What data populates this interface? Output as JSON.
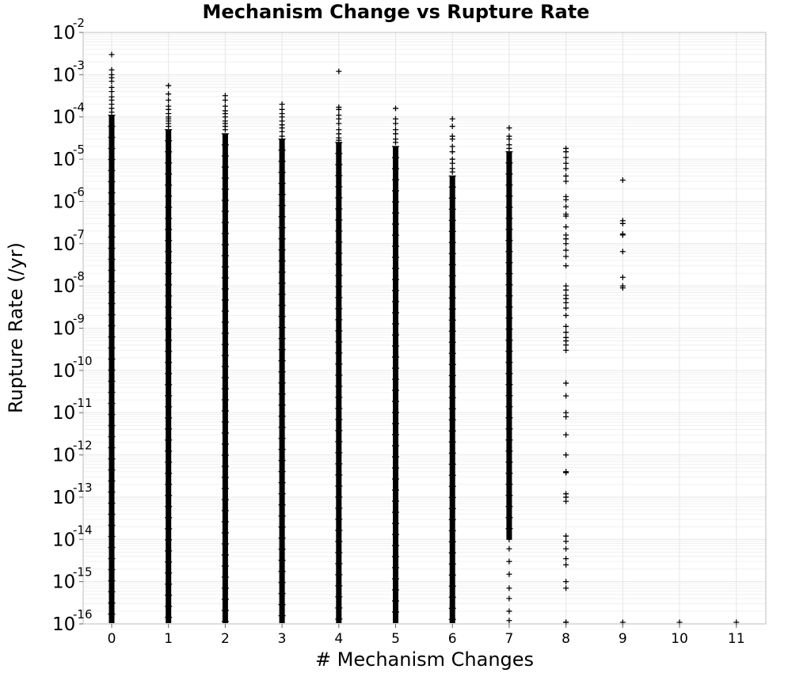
{
  "chart_data": {
    "type": "scatter",
    "title": "Mechanism Change vs Rupture Rate",
    "xlabel": "# Mechanism Changes",
    "ylabel": "Rupture Rate (/yr)",
    "x_ticks": [
      "0",
      "1",
      "2",
      "3",
      "4",
      "5",
      "6",
      "7",
      "8",
      "9",
      "10",
      "11"
    ],
    "y_scale": "log",
    "y_ticks": [
      {
        "base": "10",
        "exp": "-16"
      },
      {
        "base": "10",
        "exp": "-15"
      },
      {
        "base": "10",
        "exp": "-14"
      },
      {
        "base": "10",
        "exp": "-13"
      },
      {
        "base": "10",
        "exp": "-12"
      },
      {
        "base": "10",
        "exp": "-11"
      },
      {
        "base": "10",
        "exp": "-10"
      },
      {
        "base": "10",
        "exp": "-9"
      },
      {
        "base": "10",
        "exp": "-8"
      },
      {
        "base": "10",
        "exp": "-7"
      },
      {
        "base": "10",
        "exp": "-6"
      },
      {
        "base": "10",
        "exp": "-5"
      },
      {
        "base": "10",
        "exp": "-4"
      },
      {
        "base": "10",
        "exp": "-3"
      },
      {
        "base": "10",
        "exp": "-2"
      }
    ],
    "xlim": [
      -0.5,
      11.5
    ],
    "ylim": [
      1e-16,
      0.01
    ],
    "grid": true,
    "marker": "+",
    "marker_color": "#000000",
    "columns": [
      {
        "x": 0,
        "dense_min": 1e-16,
        "dense_max": 0.00011,
        "points": [
          0.003,
          0.0013,
          0.001,
          0.00085,
          0.0007,
          0.0005,
          0.0004,
          0.0003,
          0.00025,
          0.0002,
          0.00016,
          0.00013
        ]
      },
      {
        "x": 1,
        "dense_min": 1e-16,
        "dense_max": 5e-05,
        "points": [
          0.00055,
          0.00035,
          0.00025,
          0.00018,
          0.00015,
          0.00012,
          0.0001,
          9e-05,
          8e-05,
          7e-05,
          6e-05
        ]
      },
      {
        "x": 2,
        "dense_min": 1e-16,
        "dense_max": 4e-05,
        "points": [
          0.00032,
          0.00025,
          0.00018,
          0.00014,
          0.00012,
          0.0001,
          8e-05,
          7e-05,
          6e-05,
          5e-05
        ]
      },
      {
        "x": 3,
        "dense_min": 1e-16,
        "dense_max": 3e-05,
        "points": [
          0.0002,
          0.00015,
          0.00012,
          0.0001,
          8e-05,
          6.5e-05,
          5.5e-05,
          4.5e-05,
          3.5e-05
        ]
      },
      {
        "x": 4,
        "dense_min": 1e-16,
        "dense_max": 2.5e-05,
        "points": [
          0.0012,
          0.00017,
          0.00015,
          0.00011,
          9e-05,
          7e-05,
          5e-05,
          4e-05,
          3.2e-05,
          2.8e-05
        ]
      },
      {
        "x": 5,
        "dense_min": 1e-16,
        "dense_max": 2e-05,
        "points": [
          0.00016,
          9e-05,
          7e-05,
          5e-05,
          4e-05,
          3e-05,
          2.5e-05
        ]
      },
      {
        "x": 6,
        "dense_min": 1e-16,
        "dense_max": 4e-06,
        "gaps": [
          [
            1e-16,
            3e-16
          ]
        ],
        "points": [
          9e-05,
          6e-05,
          3.5e-05,
          3e-05,
          2e-05,
          1.5e-05,
          1e-05,
          8e-06,
          6e-06,
          5e-06
        ]
      },
      {
        "x": 7,
        "dense_min": 1e-14,
        "dense_max": 1.5e-05,
        "points": [
          5.5e-05,
          3.5e-05,
          3e-05,
          2.2e-05,
          1.8e-05,
          3e-07,
          1e-07,
          5e-08,
          2e-08,
          8e-09,
          3e-09,
          1.5e-09,
          5e-10,
          2e-10,
          8e-11,
          3e-11,
          1e-11,
          4e-12,
          1.5e-12,
          5e-13,
          2e-13,
          8e-14,
          3e-14,
          1e-14,
          6e-15,
          3e-15,
          1.5e-15,
          7e-16,
          4e-16,
          2e-16,
          1.2e-16
        ]
      },
      {
        "x": 8,
        "dense_min": null,
        "dense_max": null,
        "points": [
          1.8e-05,
          1.5e-05,
          1.1e-05,
          8e-06,
          6e-06,
          4e-06,
          3e-06,
          1.3e-06,
          1.1e-06,
          7.5e-07,
          5e-07,
          4.5e-07,
          2.5e-07,
          1.6e-07,
          1.3e-07,
          1e-07,
          7e-08,
          5e-08,
          3e-08,
          1e-08,
          8e-09,
          6e-09,
          5e-09,
          4e-09,
          3e-09,
          2e-09,
          1.1e-09,
          8e-10,
          6e-10,
          5e-10,
          4e-10,
          3e-10,
          5e-11,
          2.5e-11,
          1e-11,
          8e-12,
          3e-12,
          1e-12,
          4e-13,
          3.8e-13,
          1.2e-13,
          1e-13,
          8e-14,
          1.2e-14,
          9e-15,
          6e-15,
          3.5e-15,
          2.5e-15,
          1e-15,
          7e-16,
          1.1e-16,
          1e-16
        ]
      },
      {
        "x": 9,
        "dense_min": null,
        "dense_max": null,
        "points": [
          3.2e-06,
          3.5e-07,
          3e-07,
          1.7e-07,
          1.6e-07,
          6.5e-08,
          1.6e-08,
          1e-08,
          9e-09,
          1.05e-16
        ]
      },
      {
        "x": 10,
        "dense_min": null,
        "dense_max": null,
        "points": [
          1.05e-16
        ]
      },
      {
        "x": 11,
        "dense_min": null,
        "dense_max": null,
        "points": [
          1.05e-16
        ]
      }
    ]
  }
}
